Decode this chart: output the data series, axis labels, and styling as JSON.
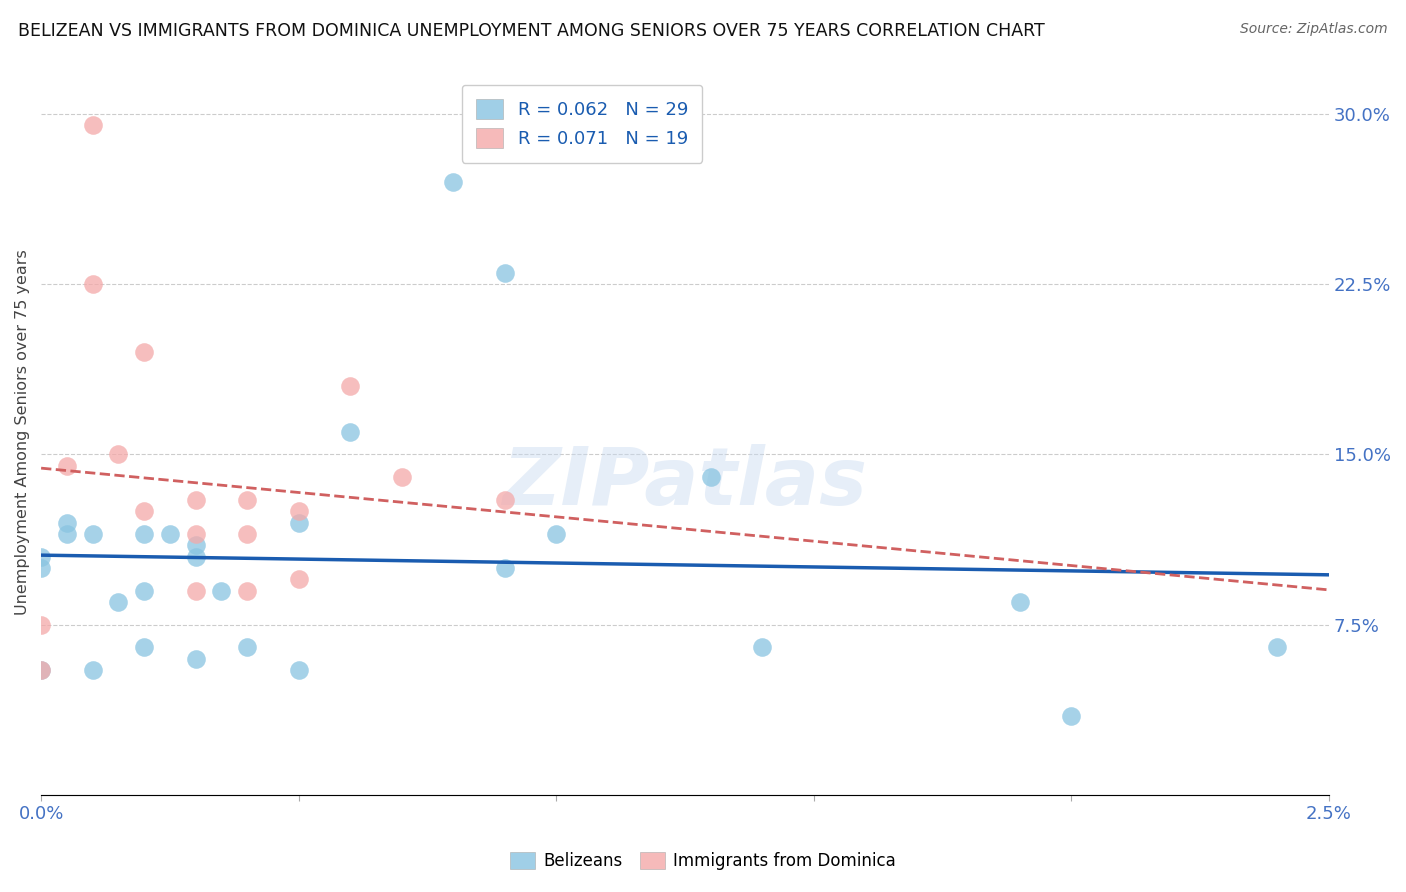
{
  "title": "BELIZEAN VS IMMIGRANTS FROM DOMINICA UNEMPLOYMENT AMONG SENIORS OVER 75 YEARS CORRELATION CHART",
  "source": "Source: ZipAtlas.com",
  "ylabel": "Unemployment Among Seniors over 75 years",
  "xlim": [
    0.0,
    0.025
  ],
  "ylim": [
    0.0,
    0.32
  ],
  "xticks": [
    0.0,
    0.005,
    0.01,
    0.015,
    0.02,
    0.025
  ],
  "xticklabels": [
    "0.0%",
    "",
    "",
    "",
    "",
    "2.5%"
  ],
  "yticks": [
    0.075,
    0.15,
    0.225,
    0.3
  ],
  "yticklabels": [
    "7.5%",
    "15.0%",
    "22.5%",
    "30.0%"
  ],
  "belizean_color": "#89c4e1",
  "dominica_color": "#f4a9a9",
  "belizean_R": "0.062",
  "belizean_N": "29",
  "dominica_R": "0.071",
  "dominica_N": "19",
  "belizean_x": [
    0.0,
    0.0,
    0.0,
    0.0005,
    0.0005,
    0.001,
    0.001,
    0.0015,
    0.002,
    0.002,
    0.002,
    0.0025,
    0.003,
    0.003,
    0.003,
    0.0035,
    0.004,
    0.005,
    0.005,
    0.006,
    0.008,
    0.009,
    0.009,
    0.01,
    0.013,
    0.014,
    0.019,
    0.02,
    0.024
  ],
  "belizean_y": [
    0.1,
    0.105,
    0.055,
    0.12,
    0.115,
    0.115,
    0.055,
    0.085,
    0.115,
    0.09,
    0.065,
    0.115,
    0.11,
    0.105,
    0.06,
    0.09,
    0.065,
    0.12,
    0.055,
    0.16,
    0.27,
    0.23,
    0.1,
    0.115,
    0.14,
    0.065,
    0.085,
    0.035,
    0.065
  ],
  "dominica_x": [
    0.0,
    0.0,
    0.0005,
    0.001,
    0.001,
    0.0015,
    0.002,
    0.002,
    0.003,
    0.003,
    0.003,
    0.004,
    0.004,
    0.004,
    0.005,
    0.005,
    0.006,
    0.007,
    0.009
  ],
  "dominica_y": [
    0.075,
    0.055,
    0.145,
    0.295,
    0.225,
    0.15,
    0.195,
    0.125,
    0.13,
    0.115,
    0.09,
    0.13,
    0.115,
    0.09,
    0.125,
    0.095,
    0.18,
    0.14,
    0.13
  ],
  "belizean_line_color": "#1a5cb0",
  "dominica_line_color": "#d06060",
  "watermark_text": "ZIPatlas",
  "background_color": "#ffffff"
}
